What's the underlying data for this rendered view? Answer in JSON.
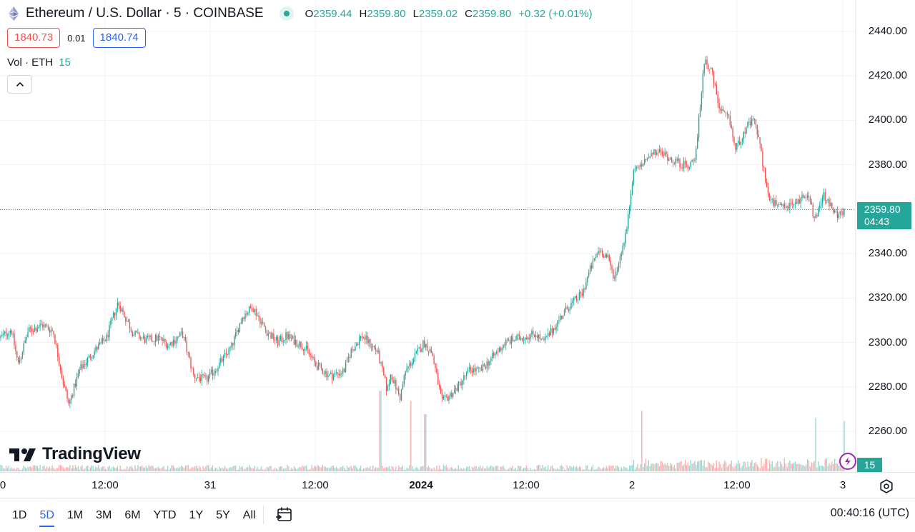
{
  "header": {
    "symbol_title": "Ethereum / U.S. Dollar · 5 · COINBASE",
    "ohlc": {
      "o_label": "O",
      "o_value": "2359.44",
      "h_label": "H",
      "h_value": "2359.80",
      "l_label": "L",
      "l_value": "2359.02",
      "c_label": "C",
      "c_value": "2359.80",
      "change": "+0.32 (+0.01%)"
    }
  },
  "trade": {
    "sell_price": "1840.73",
    "spread": "0.01",
    "buy_price": "1840.74"
  },
  "volume_legend": {
    "label": "Vol · ETH",
    "value": "15"
  },
  "logo_text": "TradingView",
  "price_axis": {
    "labels": [
      "2440.00",
      "2420.00",
      "2400.00",
      "2380.00",
      "2360.00",
      "2340.00",
      "2320.00",
      "2300.00",
      "2280.00",
      "2260.00"
    ],
    "last_price": "2359.80",
    "countdown": "04:43",
    "volume_badge": "15"
  },
  "time_axis": {
    "labels": [
      "0",
      "12:00",
      "31",
      "12:00",
      "2024",
      "12:00",
      "2",
      "12:00",
      "3"
    ]
  },
  "toolbar": {
    "ranges": [
      "1D",
      "5D",
      "1M",
      "3M",
      "6M",
      "YTD",
      "1Y",
      "5Y",
      "All"
    ],
    "active_range": "5D",
    "clock": "00:40:16 (UTC)"
  },
  "colors": {
    "up": "#26a69a",
    "down": "#ef5350",
    "grid": "#f0f3fa",
    "accent": "#2962ff"
  },
  "icons": [
    "ethereum-icon",
    "status-dot-icon",
    "chevron-up-icon",
    "tradingview-logo-icon",
    "flash-icon",
    "settings-icon",
    "calendar-icon"
  ],
  "chart_data": {
    "type": "candlestick",
    "title": "Ethereum / U.S. Dollar · 5 · COINBASE",
    "ylim": [
      2252,
      2447
    ],
    "y_ticks": [
      2260,
      2280,
      2300,
      2320,
      2340,
      2360,
      2380,
      2400,
      2420,
      2440
    ],
    "x_ticks": [
      "0",
      "12:00",
      "31",
      "12:00",
      "2024",
      "12:00",
      "2",
      "12:00",
      "3"
    ],
    "last_price": 2359.8,
    "grid": true,
    "close_path": [
      [
        0,
        2302
      ],
      [
        0.8,
        2306
      ],
      [
        1.3,
        2290
      ],
      [
        2.0,
        2305
      ],
      [
        3.0,
        2308
      ],
      [
        3.8,
        2305
      ],
      [
        4.5,
        2282
      ],
      [
        4.9,
        2272
      ],
      [
        5.7,
        2288
      ],
      [
        6.7,
        2296
      ],
      [
        7.6,
        2302
      ],
      [
        8.4,
        2318
      ],
      [
        9.5,
        2304
      ],
      [
        10.4,
        2301
      ],
      [
        11.3,
        2302
      ],
      [
        12.0,
        2299
      ],
      [
        13.0,
        2304
      ],
      [
        13.8,
        2285
      ],
      [
        14.7,
        2283
      ],
      [
        15.6,
        2290
      ],
      [
        16.5,
        2298
      ],
      [
        17.3,
        2312
      ],
      [
        18.0,
        2316
      ],
      [
        19.0,
        2305
      ],
      [
        19.8,
        2300
      ],
      [
        20.4,
        2303
      ],
      [
        21.7,
        2298
      ],
      [
        22.5,
        2290
      ],
      [
        23.5,
        2285
      ],
      [
        24.5,
        2287
      ],
      [
        25.0,
        2296
      ],
      [
        25.8,
        2303
      ],
      [
        26.9,
        2296
      ],
      [
        27.6,
        2278
      ],
      [
        27.85,
        2286
      ],
      [
        28.5,
        2275
      ],
      [
        28.9,
        2287
      ],
      [
        29.6,
        2294
      ],
      [
        30.2,
        2300
      ],
      [
        30.8,
        2295
      ],
      [
        31.5,
        2273
      ],
      [
        32.5,
        2279
      ],
      [
        33.5,
        2288
      ],
      [
        34.2,
        2287
      ],
      [
        35.2,
        2294
      ],
      [
        36.0,
        2300
      ],
      [
        37.0,
        2302
      ],
      [
        38.2,
        2304
      ],
      [
        38.7,
        2300
      ],
      [
        39.3,
        2305
      ],
      [
        39.8,
        2310
      ],
      [
        40.5,
        2316
      ],
      [
        41.5,
        2322
      ],
      [
        42.0,
        2332
      ],
      [
        42.7,
        2342
      ],
      [
        43.3,
        2338
      ],
      [
        43.8,
        2329
      ],
      [
        44.4,
        2344
      ],
      [
        44.7,
        2352
      ],
      [
        45.1,
        2376
      ],
      [
        45.9,
        2381
      ],
      [
        46.8,
        2386
      ],
      [
        47.5,
        2384
      ],
      [
        48.3,
        2381
      ],
      [
        49.0,
        2379
      ],
      [
        49.6,
        2385
      ],
      [
        50.2,
        2428
      ],
      [
        50.7,
        2422
      ],
      [
        51.3,
        2404
      ],
      [
        52.0,
        2400
      ],
      [
        52.4,
        2387
      ],
      [
        53.2,
        2397
      ],
      [
        53.8,
        2400
      ],
      [
        54.3,
        2383
      ],
      [
        54.8,
        2364
      ],
      [
        55.7,
        2360
      ],
      [
        56.8,
        2363
      ],
      [
        57.6,
        2368
      ],
      [
        58.0,
        2355
      ],
      [
        58.7,
        2366
      ],
      [
        59.4,
        2359
      ],
      [
        60.0,
        2357
      ],
      [
        60.3,
        2359.8
      ]
    ],
    "volume_spikes": [
      [
        27.1,
        24
      ],
      [
        29.3,
        21
      ],
      [
        30.3,
        17
      ],
      [
        45.7,
        18
      ],
      [
        58.1,
        16
      ],
      [
        60.2,
        15
      ]
    ],
    "vol_label": "Vol · ETH",
    "vol_last": 15
  }
}
